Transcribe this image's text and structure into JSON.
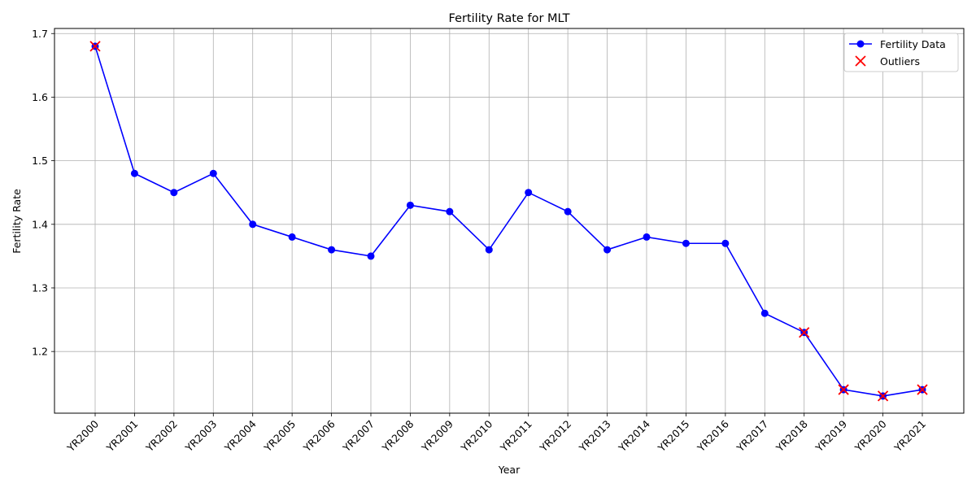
{
  "chart_data": {
    "type": "line",
    "title": "Fertility Rate for MLT",
    "xlabel": "Year",
    "ylabel": "Fertility Rate",
    "categories": [
      "YR2000",
      "YR2001",
      "YR2002",
      "YR2003",
      "YR2004",
      "YR2005",
      "YR2006",
      "YR2007",
      "YR2008",
      "YR2009",
      "YR2010",
      "YR2011",
      "YR2012",
      "YR2013",
      "YR2014",
      "YR2015",
      "YR2016",
      "YR2017",
      "YR2018",
      "YR2019",
      "YR2020",
      "YR2021"
    ],
    "series": [
      {
        "name": "Fertility Data",
        "color": "#0000ff",
        "marker": "circle",
        "values": [
          1.68,
          1.48,
          1.45,
          1.48,
          1.4,
          1.38,
          1.36,
          1.35,
          1.43,
          1.42,
          1.36,
          1.45,
          1.42,
          1.36,
          1.38,
          1.37,
          1.37,
          1.26,
          1.23,
          1.14,
          1.13,
          1.14
        ]
      }
    ],
    "outliers": {
      "name": "Outliers",
      "color": "#ff0000",
      "marker": "x",
      "categories": [
        "YR2000",
        "YR2018",
        "YR2019",
        "YR2020",
        "YR2021"
      ],
      "values": [
        1.68,
        1.23,
        1.14,
        1.13,
        1.14
      ]
    },
    "yticks": [
      1.2,
      1.3,
      1.4,
      1.5,
      1.6,
      1.7
    ],
    "ylim": [
      1.103,
      1.708
    ],
    "grid": true,
    "legend_position": "top-right"
  }
}
